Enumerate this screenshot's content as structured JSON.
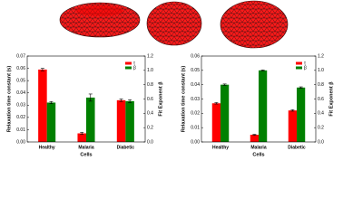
{
  "chart_data": [
    {
      "type": "bar",
      "categories": [
        "Healthy",
        "Malaria",
        "Diabetic"
      ],
      "x_label": "Cells",
      "y_label": "Relaxation time constant (s)",
      "y2_label": "Fit Exponent β",
      "ylim": [
        0,
        0.07
      ],
      "yticks": [
        {
          "value": 0,
          "label": "0.00"
        },
        0.01,
        0.02,
        0.03,
        0.04,
        0.05,
        0.06,
        0.07
      ],
      "y2lim": [
        0,
        1.2
      ],
      "y2ticks": [
        {
          "value": 0,
          "label": "0.0"
        },
        0.2,
        0.4,
        0.6,
        0.8,
        {
          "value": 1,
          "label": "1.0"
        },
        1.2
      ],
      "legend": "upper right",
      "series": [
        {
          "name": "τ",
          "color": "#ff0000",
          "values": [
            0.059,
            0.007,
            0.034
          ],
          "errors": [
            0.001,
            0.0008,
            0.001
          ]
        },
        {
          "name": "β",
          "color": "#008000",
          "axis": "y2",
          "values": [
            0.55,
            0.62,
            0.57
          ],
          "errors": [
            0.015,
            0.05,
            0.02
          ]
        }
      ]
    },
    {
      "type": "bar",
      "categories": [
        "Healthy",
        "Malaria",
        "Diabetic"
      ],
      "x_label": "Cells",
      "y_label": "Relaxation time constant (s)",
      "y2_label": "Fit Exponent β",
      "ylim": [
        0,
        0.06
      ],
      "yticks": [
        {
          "value": 0,
          "label": "0.00"
        },
        0.01,
        0.02,
        0.03,
        0.04,
        0.05,
        0.06
      ],
      "y2lim": [
        0,
        1.2
      ],
      "y2ticks": [
        {
          "value": 0,
          "label": "0.0"
        },
        0.2,
        0.4,
        0.6,
        0.8,
        {
          "value": 1,
          "label": "1.0"
        },
        1.2
      ],
      "legend": "upper right",
      "series": [
        {
          "name": "τ",
          "color": "#ff0000",
          "values": [
            0.027,
            0.005,
            0.022
          ],
          "errors": [
            0.0005,
            0.0003,
            0.0005
          ]
        },
        {
          "name": "β",
          "color": "#008000",
          "axis": "y2",
          "values": [
            0.8,
            1.0,
            0.76
          ],
          "errors": [
            0.01,
            0.005,
            0.01
          ]
        }
      ]
    }
  ]
}
